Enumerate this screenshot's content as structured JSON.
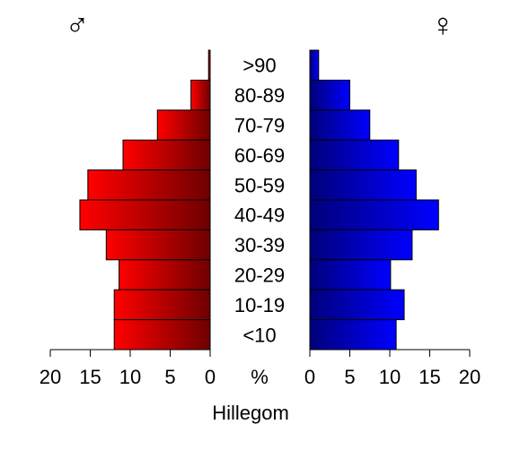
{
  "chart_data": {
    "type": "bar",
    "layout": "population-pyramid",
    "xlabel": "Hillegom",
    "unit_label": "%",
    "male_symbol": "♂",
    "female_symbol": "♀",
    "categories": [
      ">90",
      "80-89",
      "70-79",
      "60-69",
      "50-59",
      "40-49",
      "30-39",
      "20-29",
      "10-19",
      "<10"
    ],
    "series": [
      {
        "key": "male",
        "side": "left",
        "values": [
          0.2,
          2.4,
          6.6,
          10.9,
          15.3,
          16.3,
          13.0,
          11.4,
          12.0,
          12.0
        ]
      },
      {
        "key": "female",
        "side": "right",
        "values": [
          1.1,
          5.0,
          7.5,
          11.1,
          13.3,
          16.1,
          12.8,
          10.1,
          11.8,
          10.8
        ]
      }
    ],
    "xlim": [
      0,
      20
    ],
    "ticks": [
      0,
      5,
      10,
      15,
      20
    ],
    "tick_labels": [
      "0",
      "5",
      "10",
      "15",
      "20"
    ],
    "colors": {
      "male_dark": "#6e0000",
      "male_light": "#ff0000",
      "female_dark": "#00007a",
      "female_light": "#0000ff"
    }
  }
}
